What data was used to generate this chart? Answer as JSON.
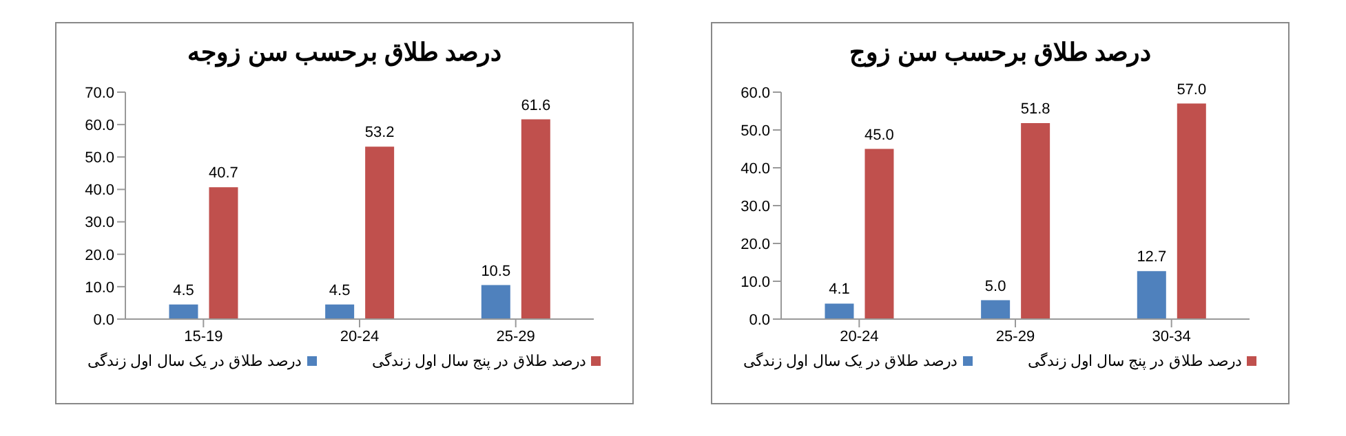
{
  "chart_data": [
    {
      "type": "bar",
      "title": "درصد طلاق برحسب سن زوجه",
      "categories": [
        "15-19",
        "20-24",
        "25-29"
      ],
      "series": [
        {
          "name": "درصد طلاق در یک سال اول زندگی",
          "color": "#4f81bd",
          "values": [
            4.5,
            4.5,
            10.5
          ],
          "value_labels": [
            "4.5",
            "4.5",
            "10.5"
          ]
        },
        {
          "name": "درصد طلاق در پنج سال اول زندگی",
          "color": "#c0504d",
          "values": [
            40.7,
            53.2,
            61.6
          ],
          "value_labels": [
            "40.7",
            "53.2",
            "61.6"
          ]
        }
      ],
      "ylim": [
        0,
        70
      ],
      "yticks": [
        {
          "value": 0,
          "label": "0.0"
        },
        {
          "value": 10,
          "label": "10.0"
        },
        {
          "value": 20,
          "label": "20.0"
        },
        {
          "value": 30,
          "label": "30.0"
        },
        {
          "value": 40,
          "label": "40.0"
        },
        {
          "value": 50,
          "label": "50.0"
        },
        {
          "value": 60,
          "label": "60.0"
        },
        {
          "value": 70,
          "label": "70.0"
        }
      ],
      "grid": false,
      "legend": "bottom"
    },
    {
      "type": "bar",
      "title": "درصد طلاق برحسب سن زوج",
      "categories": [
        "20-24",
        "25-29",
        "30-34"
      ],
      "series": [
        {
          "name": "درصد طلاق در یک سال اول زندگی",
          "color": "#4f81bd",
          "values": [
            4.1,
            5.0,
            12.7
          ],
          "value_labels": [
            "4.1",
            "5.0",
            "12.7"
          ]
        },
        {
          "name": "درصد طلاق در پنج سال اول زندگی",
          "color": "#c0504d",
          "values": [
            45.0,
            51.8,
            57.0
          ],
          "value_labels": [
            "45.0",
            "51.8",
            "57.0"
          ]
        }
      ],
      "ylim": [
        0,
        60
      ],
      "yticks": [
        {
          "value": 0,
          "label": "0.0"
        },
        {
          "value": 10,
          "label": "10.0"
        },
        {
          "value": 20,
          "label": "20.0"
        },
        {
          "value": 30,
          "label": "30.0"
        },
        {
          "value": 40,
          "label": "40.0"
        },
        {
          "value": 50,
          "label": "50.0"
        },
        {
          "value": 60,
          "label": "60.0"
        }
      ],
      "grid": false,
      "legend": "bottom"
    }
  ]
}
